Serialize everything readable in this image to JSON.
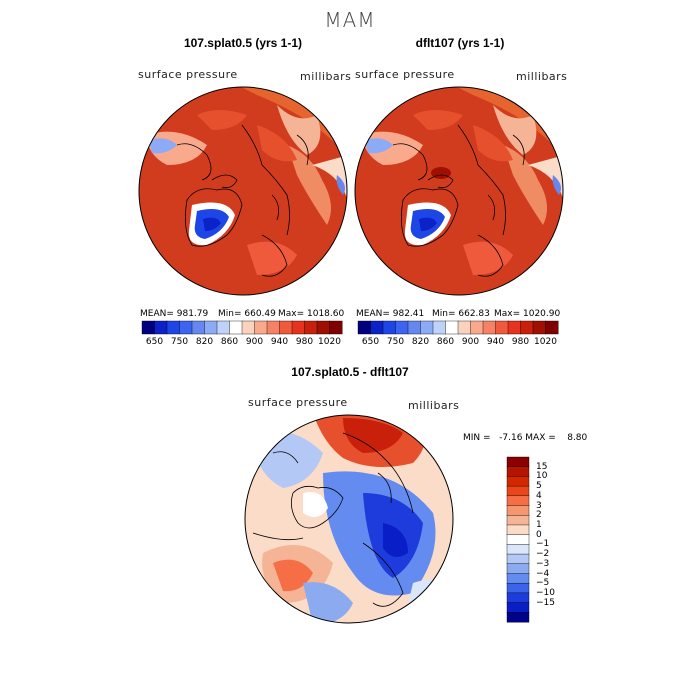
{
  "figure": {
    "title": "MAM"
  },
  "panels": [
    {
      "title": "107.splat0.5 (yrs 1-1)",
      "variable": "surface pressure",
      "units": "millibars",
      "mean_label": "MEAN= 981.79",
      "min_label": "Min= 660.49",
      "max_label": "Max= 1018.60"
    },
    {
      "title": "dflt107 (yrs 1-1)",
      "variable": "surface pressure",
      "units": "millibars",
      "mean_label": "MEAN= 982.41",
      "min_label": "Min= 662.83",
      "max_label": "Max= 1020.90"
    }
  ],
  "diff_panel": {
    "title": "107.splat0.5 - dflt107",
    "variable": "surface pressure",
    "units": "millibars",
    "minmax_label": "MIN =   -7.16 MAX =    8.80"
  },
  "colorbar_abs": {
    "ticks": [
      "650",
      "750",
      "820",
      "860",
      "900",
      "940",
      "980",
      "1020"
    ],
    "colors": [
      "#00007f",
      "#0a22c8",
      "#1e46e6",
      "#3c64f0",
      "#6487f0",
      "#8caaf5",
      "#bed2fa",
      "#ffffff",
      "#fad2be",
      "#faaa8c",
      "#f58264",
      "#f05a3c",
      "#e6321e",
      "#c8200a",
      "#a01000",
      "#7f0000"
    ]
  },
  "colorbar_diff": {
    "ticks": [
      "15",
      "10",
      "5",
      "4",
      "3",
      "2",
      "1",
      "0",
      "−1",
      "−2",
      "−3",
      "−4",
      "−5",
      "−10",
      "−15"
    ],
    "colors": [
      "#8b0000",
      "#b41400",
      "#d22800",
      "#eb4619",
      "#f56e46",
      "#f5966e",
      "#f5b496",
      "#fadcc8",
      "#ffffff",
      "#dce6fa",
      "#b4c8f5",
      "#8caaf0",
      "#648cf0",
      "#3c64eb",
      "#1e3cdc",
      "#0a1ec8",
      "#00008b"
    ]
  },
  "chart_data": {
    "type": "heatmap",
    "projection": "north polar stereographic",
    "title": "MAM",
    "note": "Three polar maps: two absolute fields and their difference; values shown via filled contours."
  }
}
